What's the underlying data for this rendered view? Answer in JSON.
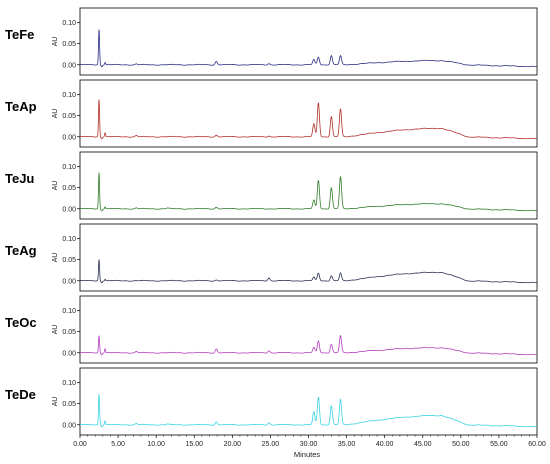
{
  "chart_data": {
    "type": "line",
    "title": "",
    "xlabel": "Minutes",
    "ylabel": "AU",
    "xlim": [
      0,
      60
    ],
    "ylim": [
      -0.01,
      0.12
    ],
    "x_ticks": [
      "0.00",
      "5.00",
      "10.00",
      "15.00",
      "20.00",
      "25.00",
      "30.00",
      "35.00",
      "40.00",
      "45.00",
      "50.00",
      "55.00",
      "60.00"
    ],
    "y_ticks": [
      "0.00",
      "0.05",
      "0.10"
    ],
    "grid": false,
    "legend": "none",
    "series": [
      {
        "name": "TeFe",
        "color": "#2b2f86",
        "peaks": [
          {
            "t": 2.5,
            "h": 0.083
          },
          {
            "t": 3.3,
            "h": 0.006
          },
          {
            "t": 7.4,
            "h": 0.002
          },
          {
            "t": 17.9,
            "h": 0.008
          },
          {
            "t": 24.8,
            "h": 0.003
          },
          {
            "t": 30.7,
            "h": 0.012
          },
          {
            "t": 31.3,
            "h": 0.018
          },
          {
            "t": 33.0,
            "h": 0.022
          },
          {
            "t": 34.2,
            "h": 0.021
          }
        ],
        "hump": {
          "start": 35.0,
          "end": 47.5,
          "h": 0.01
        }
      },
      {
        "name": "TeAp",
        "color": "#b2312b",
        "peaks": [
          {
            "t": 2.5,
            "h": 0.088
          },
          {
            "t": 3.3,
            "h": 0.01
          },
          {
            "t": 7.4,
            "h": 0.003
          },
          {
            "t": 17.9,
            "h": 0.004
          },
          {
            "t": 24.8,
            "h": 0.002
          },
          {
            "t": 30.7,
            "h": 0.03
          },
          {
            "t": 31.3,
            "h": 0.08
          },
          {
            "t": 33.0,
            "h": 0.048
          },
          {
            "t": 34.2,
            "h": 0.065
          }
        ],
        "hump": {
          "start": 35.0,
          "end": 47.5,
          "h": 0.02
        }
      },
      {
        "name": "TeJu",
        "color": "#2f7d2a",
        "peaks": [
          {
            "t": 2.5,
            "h": 0.085
          },
          {
            "t": 3.3,
            "h": 0.005
          },
          {
            "t": 7.4,
            "h": 0.002
          },
          {
            "t": 11.5,
            "h": 0.002
          },
          {
            "t": 17.9,
            "h": 0.004
          },
          {
            "t": 30.7,
            "h": 0.02
          },
          {
            "t": 31.3,
            "h": 0.067
          },
          {
            "t": 33.0,
            "h": 0.05
          },
          {
            "t": 34.2,
            "h": 0.075
          }
        ],
        "hump": {
          "start": 35.0,
          "end": 47.5,
          "h": 0.012
        }
      },
      {
        "name": "TeAg",
        "color": "#2c3153",
        "peaks": [
          {
            "t": 2.5,
            "h": 0.05
          },
          {
            "t": 3.3,
            "h": 0.004
          },
          {
            "t": 17.9,
            "h": 0.002
          },
          {
            "t": 24.8,
            "h": 0.007
          },
          {
            "t": 30.7,
            "h": 0.008
          },
          {
            "t": 31.3,
            "h": 0.018
          },
          {
            "t": 33.0,
            "h": 0.012
          },
          {
            "t": 34.2,
            "h": 0.018
          }
        ],
        "hump": {
          "start": 35.0,
          "end": 47.5,
          "h": 0.02
        }
      },
      {
        "name": "TeOc",
        "color": "#b43fbe",
        "peaks": [
          {
            "t": 2.5,
            "h": 0.04
          },
          {
            "t": 3.3,
            "h": 0.01
          },
          {
            "t": 7.4,
            "h": 0.003
          },
          {
            "t": 17.9,
            "h": 0.009
          },
          {
            "t": 24.8,
            "h": 0.005
          },
          {
            "t": 30.7,
            "h": 0.012
          },
          {
            "t": 31.3,
            "h": 0.028
          },
          {
            "t": 33.0,
            "h": 0.02
          },
          {
            "t": 34.2,
            "h": 0.04
          }
        ],
        "hump": {
          "start": 35.0,
          "end": 47.5,
          "h": 0.012
        }
      },
      {
        "name": "TeDe",
        "color": "#39d3e3",
        "peaks": [
          {
            "t": 2.5,
            "h": 0.072
          },
          {
            "t": 3.3,
            "h": 0.01
          },
          {
            "t": 7.4,
            "h": 0.003
          },
          {
            "t": 11.5,
            "h": 0.002
          },
          {
            "t": 17.9,
            "h": 0.007
          },
          {
            "t": 24.8,
            "h": 0.005
          },
          {
            "t": 30.7,
            "h": 0.03
          },
          {
            "t": 31.3,
            "h": 0.065
          },
          {
            "t": 33.0,
            "h": 0.045
          },
          {
            "t": 34.2,
            "h": 0.06
          }
        ],
        "hump": {
          "start": 35.0,
          "end": 47.5,
          "h": 0.022
        }
      }
    ]
  }
}
